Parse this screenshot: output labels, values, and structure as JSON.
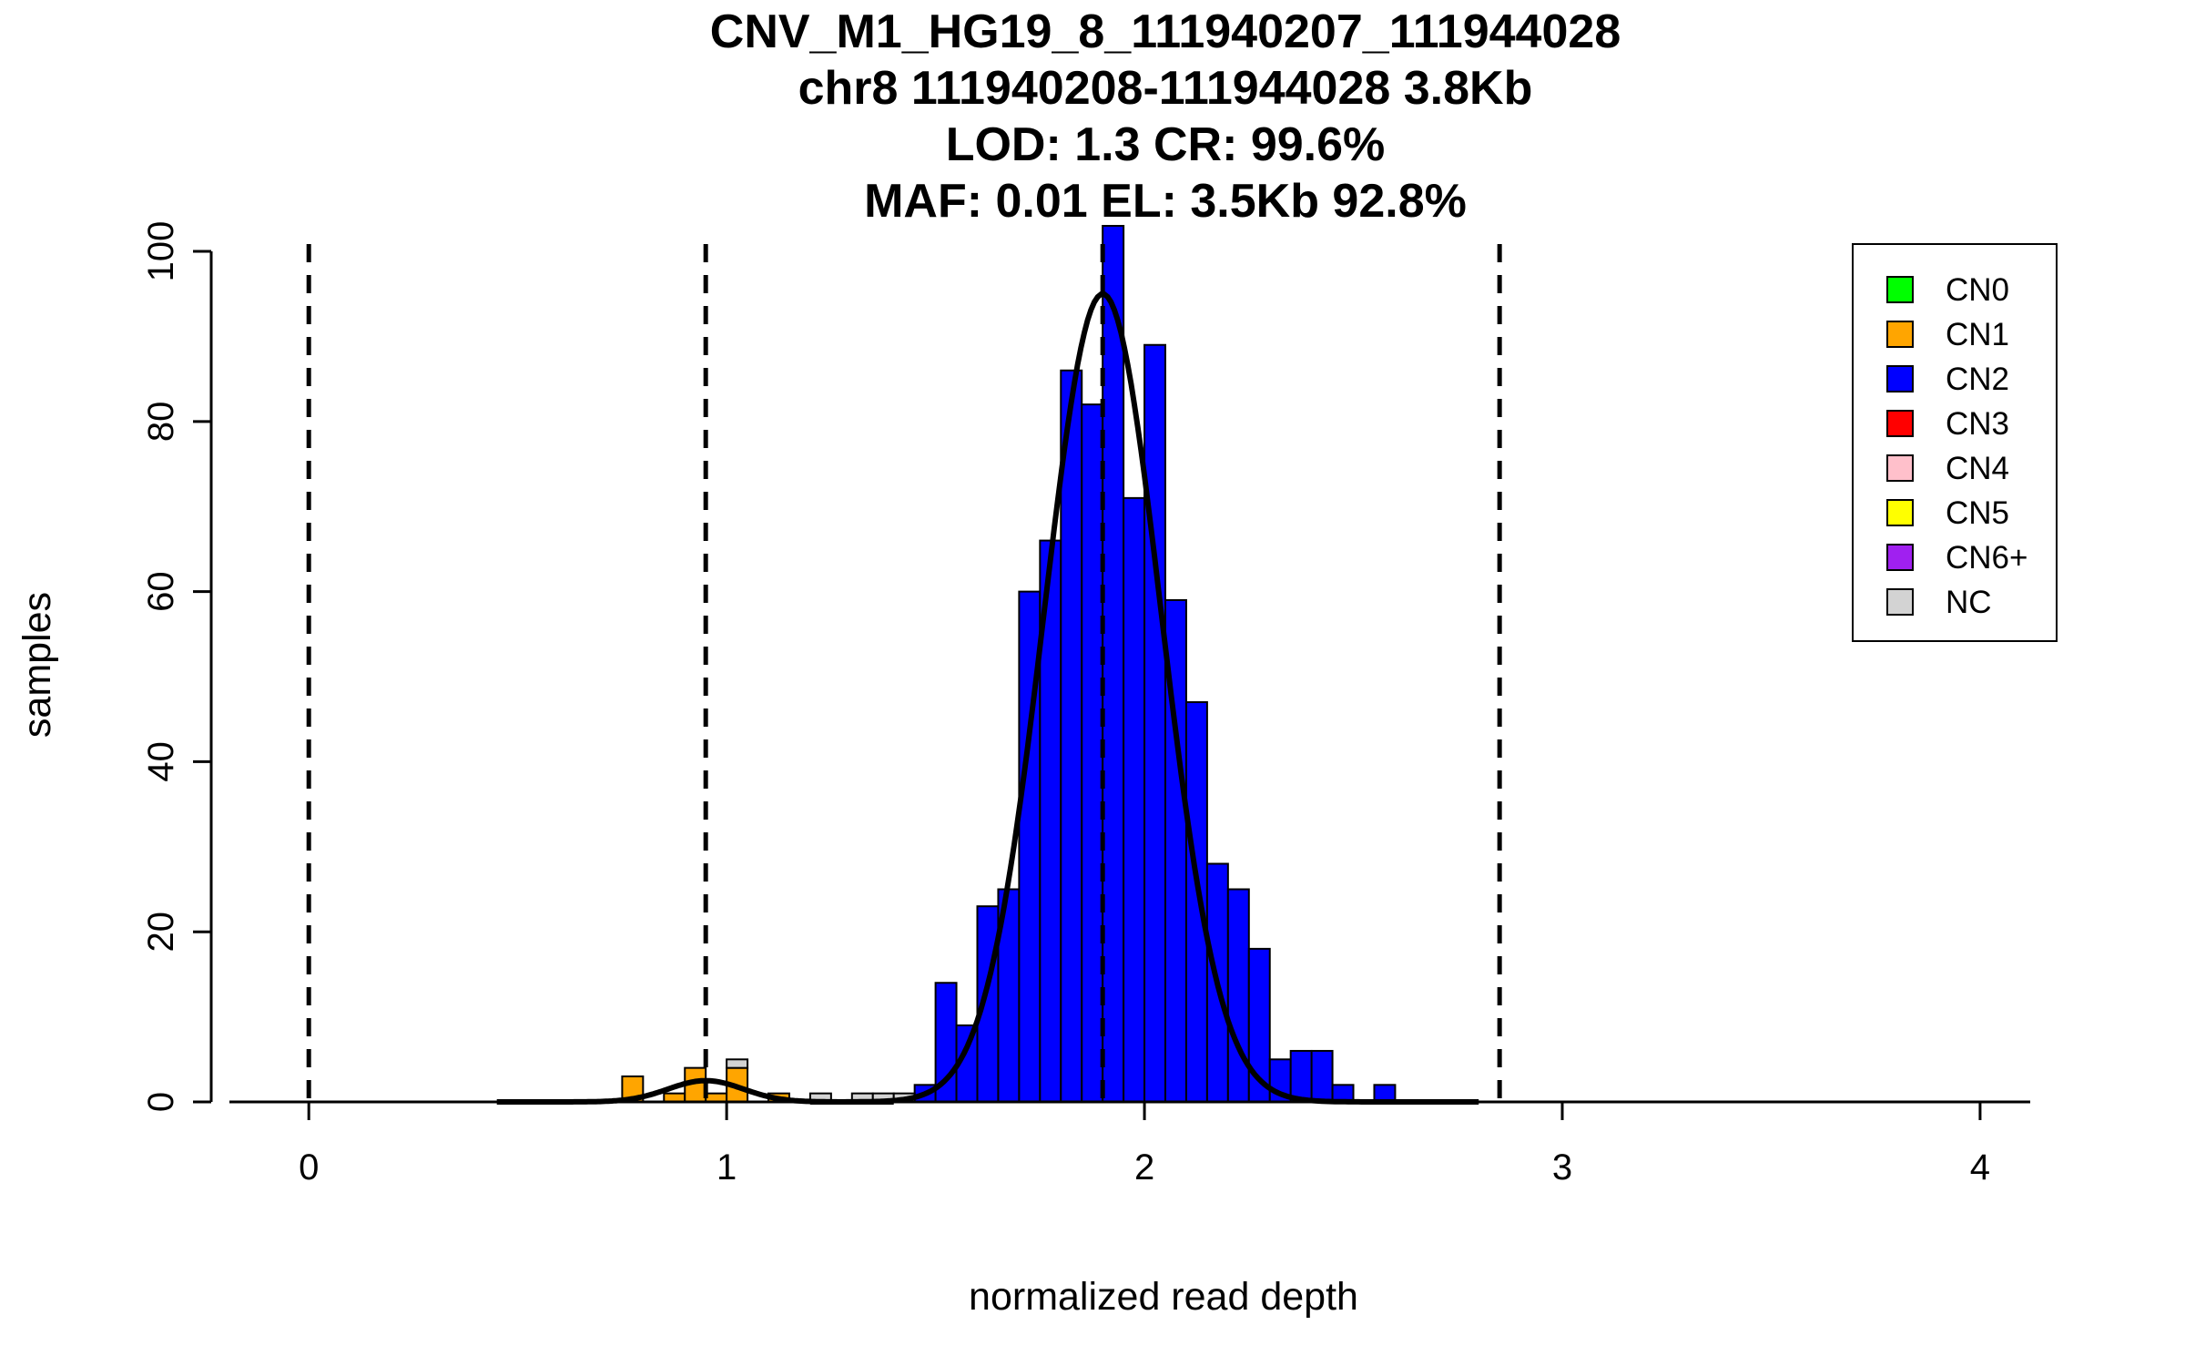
{
  "chart_data": {
    "type": "bar",
    "title_lines": [
      "CNV_M1_HG19_8_111940207_111944028",
      "chr8 111940208-111944028 3.8Kb",
      "LOD: 1.3 CR: 99.6%",
      "MAF: 0.01 EL: 3.5Kb 92.8%"
    ],
    "xlabel": "normalized read depth",
    "ylabel": "samples",
    "xlim": [
      -0.19,
      4.12
    ],
    "ylim": [
      0,
      103
    ],
    "xticks": [
      "0",
      "1",
      "2",
      "3",
      "4"
    ],
    "yticks": [
      "0",
      "20",
      "40",
      "60",
      "80",
      "100"
    ],
    "bin_width": 0.05,
    "grid": false,
    "legend_position": "top-right",
    "legend": [
      {
        "label": "CN0",
        "color": "#00ff00"
      },
      {
        "label": "CN1",
        "color": "#ffa500"
      },
      {
        "label": "CN2",
        "color": "#0000ff"
      },
      {
        "label": "CN3",
        "color": "#ff0000"
      },
      {
        "label": "CN4",
        "color": "#ffc0cb"
      },
      {
        "label": "CN5",
        "color": "#ffff00"
      },
      {
        "label": "CN6+",
        "color": "#a020f0"
      },
      {
        "label": "NC",
        "color": "#d3d3d3"
      }
    ],
    "dashed_lines_x": [
      0,
      0.95,
      1.9,
      2.85
    ],
    "series": [
      {
        "name": "CN1",
        "color": "#ffa500",
        "bins": [
          [
            0.75,
            3
          ],
          [
            0.85,
            1
          ],
          [
            0.9,
            4
          ],
          [
            0.95,
            1
          ],
          [
            1.0,
            4
          ],
          [
            1.1,
            1
          ]
        ]
      },
      {
        "name": "CN2",
        "color": "#0000ff",
        "bins": [
          [
            1.45,
            2
          ],
          [
            1.5,
            14
          ],
          [
            1.55,
            9
          ],
          [
            1.6,
            23
          ],
          [
            1.65,
            25
          ],
          [
            1.7,
            60
          ],
          [
            1.75,
            66
          ],
          [
            1.8,
            86
          ],
          [
            1.85,
            82
          ],
          [
            1.9,
            103
          ],
          [
            1.95,
            71
          ],
          [
            2.0,
            89
          ],
          [
            2.05,
            59
          ],
          [
            2.1,
            47
          ],
          [
            2.15,
            28
          ],
          [
            2.2,
            25
          ],
          [
            2.25,
            18
          ],
          [
            2.3,
            5
          ],
          [
            2.35,
            6
          ],
          [
            2.4,
            6
          ],
          [
            2.45,
            2
          ],
          [
            2.55,
            2
          ]
        ]
      },
      {
        "name": "NC",
        "color": "#d3d3d3",
        "stack_on": "CN1",
        "bins": [
          [
            1.0,
            1
          ]
        ]
      },
      {
        "name": "NC",
        "color": "#d3d3d3",
        "bins": [
          [
            1.2,
            1
          ],
          [
            1.3,
            1
          ],
          [
            1.35,
            1
          ],
          [
            1.4,
            1
          ]
        ]
      }
    ],
    "fit_curves": [
      {
        "mu": 0.95,
        "sigma": 0.09,
        "peak": 2.5,
        "xrange": [
          0.45,
          1.4
        ]
      },
      {
        "mu": 1.9,
        "sigma": 0.14,
        "peak": 95,
        "xrange": [
          1.2,
          2.8
        ]
      }
    ],
    "baseline_segments": [
      [
        -0.19,
        0.22
      ],
      [
        0.46,
        1.4
      ],
      [
        2.6,
        3.72
      ],
      [
        3.72,
        4.12
      ]
    ]
  }
}
